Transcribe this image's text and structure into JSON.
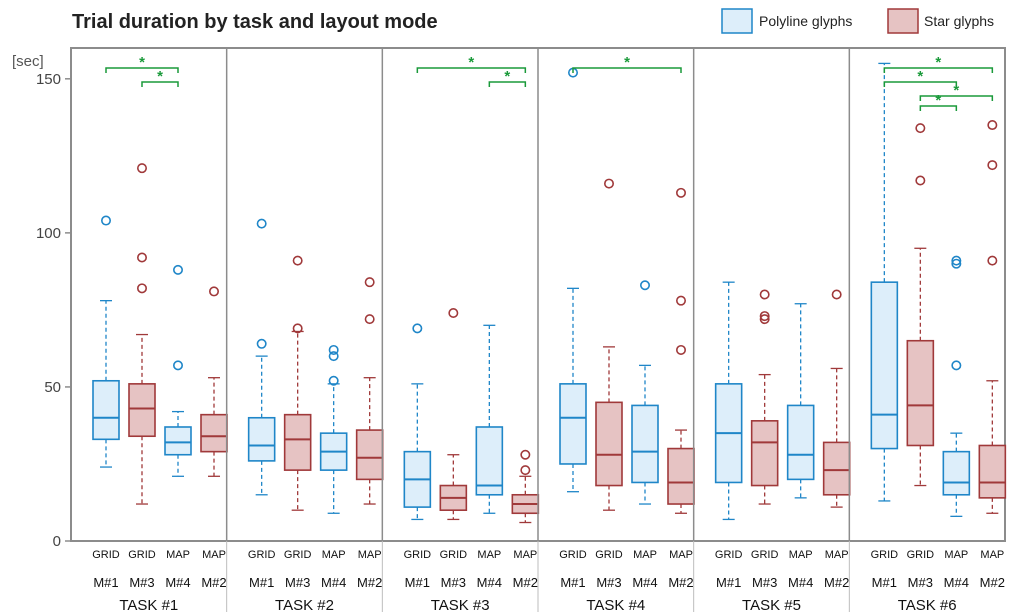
{
  "chart_data": {
    "type": "box",
    "title": "Trial duration by task and layout mode",
    "y_unit": "[sec]",
    "ylim": [
      0,
      160
    ],
    "yticks": [
      0,
      50,
      100,
      150
    ],
    "legend": {
      "placement": "top-right",
      "entries": [
        {
          "name": "Polyline glyphs",
          "key": "polyline"
        },
        {
          "name": "Star glyphs",
          "key": "star"
        }
      ]
    },
    "colors": {
      "polyline": {
        "stroke": "#1f86c8",
        "fill": "#ddeefa"
      },
      "star": {
        "stroke": "#a0393a",
        "fill": "#e6c3c3"
      },
      "significance": "#1a9a3a",
      "frame": "#8c8c8c"
    },
    "tasks": [
      {
        "label": "TASK #1",
        "boxes": [
          {
            "layout": "GRID",
            "mode": "M#1",
            "glyph": "polyline",
            "whisker_low": 24,
            "q1": 33,
            "median": 40,
            "q3": 52,
            "whisker_high": 78,
            "outliers": [
              104
            ]
          },
          {
            "layout": "GRID",
            "mode": "M#3",
            "glyph": "star",
            "whisker_low": 12,
            "q1": 34,
            "median": 43,
            "q3": 51,
            "whisker_high": 67,
            "outliers": [
              121,
              92,
              82
            ]
          },
          {
            "layout": "MAP",
            "mode": "M#4",
            "glyph": "polyline",
            "whisker_low": 21,
            "q1": 28,
            "median": 32,
            "q3": 37,
            "whisker_high": 42,
            "outliers": [
              88,
              57
            ]
          },
          {
            "layout": "MAP",
            "mode": "M#2",
            "glyph": "star",
            "whisker_low": 21,
            "q1": 29,
            "median": 34,
            "q3": 41,
            "whisker_high": 53,
            "outliers": [
              81
            ]
          }
        ],
        "significance": [
          {
            "from": 0,
            "to": 2,
            "label": "*"
          },
          {
            "from": 1,
            "to": 2,
            "label": "*"
          }
        ]
      },
      {
        "label": "TASK #2",
        "boxes": [
          {
            "layout": "GRID",
            "mode": "M#1",
            "glyph": "polyline",
            "whisker_low": 15,
            "q1": 26,
            "median": 31,
            "q3": 40,
            "whisker_high": 60,
            "outliers": [
              103,
              64
            ]
          },
          {
            "layout": "GRID",
            "mode": "M#3",
            "glyph": "star",
            "whisker_low": 10,
            "q1": 23,
            "median": 33,
            "q3": 41,
            "whisker_high": 68,
            "outliers": [
              91,
              69
            ]
          },
          {
            "layout": "MAP",
            "mode": "M#4",
            "glyph": "polyline",
            "whisker_low": 9,
            "q1": 23,
            "median": 29,
            "q3": 35,
            "whisker_high": 51,
            "outliers": [
              62,
              60,
              52
            ]
          },
          {
            "layout": "MAP",
            "mode": "M#2",
            "glyph": "star",
            "whisker_low": 12,
            "q1": 20,
            "median": 27,
            "q3": 36,
            "whisker_high": 53,
            "outliers": [
              84,
              72
            ]
          }
        ],
        "significance": []
      },
      {
        "label": "TASK #3",
        "boxes": [
          {
            "layout": "GRID",
            "mode": "M#1",
            "glyph": "polyline",
            "whisker_low": 7,
            "q1": 11,
            "median": 20,
            "q3": 29,
            "whisker_high": 51,
            "outliers": [
              69
            ]
          },
          {
            "layout": "GRID",
            "mode": "M#3",
            "glyph": "star",
            "whisker_low": 7,
            "q1": 10,
            "median": 14,
            "q3": 18,
            "whisker_high": 28,
            "outliers": [
              74
            ]
          },
          {
            "layout": "MAP",
            "mode": "M#4",
            "glyph": "polyline",
            "whisker_low": 9,
            "q1": 15,
            "median": 18,
            "q3": 37,
            "whisker_high": 70,
            "outliers": []
          },
          {
            "layout": "MAP",
            "mode": "M#2",
            "glyph": "star",
            "whisker_low": 6,
            "q1": 9,
            "median": 12,
            "q3": 15,
            "whisker_high": 21,
            "outliers": [
              28,
              23
            ]
          }
        ],
        "significance": [
          {
            "from": 0,
            "to": 3,
            "label": "*"
          },
          {
            "from": 2,
            "to": 3,
            "label": "*"
          }
        ]
      },
      {
        "label": "TASK #4",
        "boxes": [
          {
            "layout": "GRID",
            "mode": "M#1",
            "glyph": "polyline",
            "whisker_low": 16,
            "q1": 25,
            "median": 40,
            "q3": 51,
            "whisker_high": 82,
            "outliers": [
              152
            ]
          },
          {
            "layout": "GRID",
            "mode": "M#3",
            "glyph": "star",
            "whisker_low": 10,
            "q1": 18,
            "median": 28,
            "q3": 45,
            "whisker_high": 63,
            "outliers": [
              116
            ]
          },
          {
            "layout": "MAP",
            "mode": "M#4",
            "glyph": "polyline",
            "whisker_low": 12,
            "q1": 19,
            "median": 29,
            "q3": 44,
            "whisker_high": 57,
            "outliers": [
              83
            ]
          },
          {
            "layout": "MAP",
            "mode": "M#2",
            "glyph": "star",
            "whisker_low": 9,
            "q1": 12,
            "median": 19,
            "q3": 30,
            "whisker_high": 36,
            "outliers": [
              113,
              78,
              62
            ]
          }
        ],
        "significance": [
          {
            "from": 0,
            "to": 3,
            "label": "*"
          }
        ]
      },
      {
        "label": "TASK #5",
        "boxes": [
          {
            "layout": "GRID",
            "mode": "M#1",
            "glyph": "polyline",
            "whisker_low": 7,
            "q1": 19,
            "median": 35,
            "q3": 51,
            "whisker_high": 84,
            "outliers": []
          },
          {
            "layout": "GRID",
            "mode": "M#3",
            "glyph": "star",
            "whisker_low": 12,
            "q1": 18,
            "median": 32,
            "q3": 39,
            "whisker_high": 54,
            "outliers": [
              80,
              73,
              72
            ]
          },
          {
            "layout": "MAP",
            "mode": "M#4",
            "glyph": "polyline",
            "whisker_low": 14,
            "q1": 20,
            "median": 28,
            "q3": 44,
            "whisker_high": 77,
            "outliers": []
          },
          {
            "layout": "MAP",
            "mode": "M#2",
            "glyph": "star",
            "whisker_low": 11,
            "q1": 15,
            "median": 23,
            "q3": 32,
            "whisker_high": 56,
            "outliers": [
              80
            ]
          }
        ],
        "significance": []
      },
      {
        "label": "TASK #6",
        "boxes": [
          {
            "layout": "GRID",
            "mode": "M#1",
            "glyph": "polyline",
            "whisker_low": 13,
            "q1": 30,
            "median": 41,
            "q3": 84,
            "whisker_high": 155,
            "outliers": []
          },
          {
            "layout": "GRID",
            "mode": "M#3",
            "glyph": "star",
            "whisker_low": 18,
            "q1": 31,
            "median": 44,
            "q3": 65,
            "whisker_high": 95,
            "outliers": [
              134,
              117
            ]
          },
          {
            "layout": "MAP",
            "mode": "M#4",
            "glyph": "polyline",
            "whisker_low": 8,
            "q1": 15,
            "median": 19,
            "q3": 29,
            "whisker_high": 35,
            "outliers": [
              91,
              90,
              57
            ]
          },
          {
            "layout": "MAP",
            "mode": "M#2",
            "glyph": "star",
            "whisker_low": 9,
            "q1": 14,
            "median": 19,
            "q3": 31,
            "whisker_high": 52,
            "outliers": [
              135,
              122,
              91
            ]
          }
        ],
        "significance": [
          {
            "from": 0,
            "to": 3,
            "label": "*"
          },
          {
            "from": 0,
            "to": 2,
            "label": "*"
          },
          {
            "from": 1,
            "to": 3,
            "label": "*"
          },
          {
            "from": 1,
            "to": 2,
            "label": "*"
          }
        ]
      }
    ]
  }
}
